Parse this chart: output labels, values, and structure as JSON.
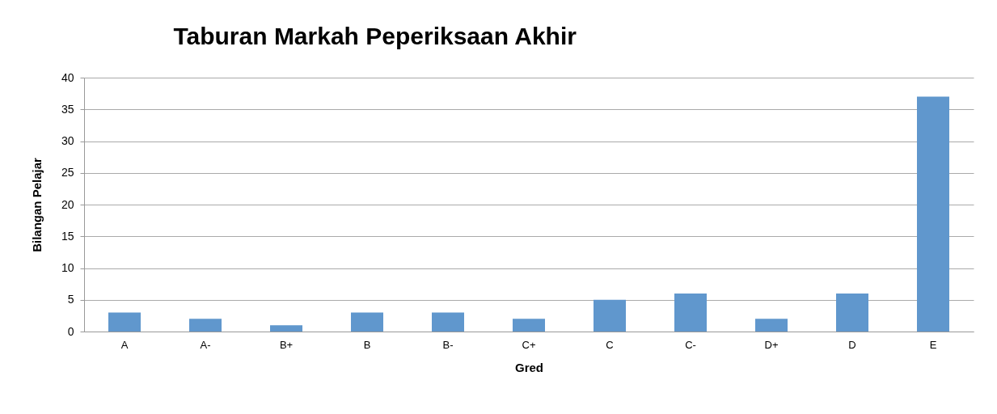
{
  "chart_data": {
    "type": "bar",
    "title": "Taburan Markah Peperiksaan Akhir",
    "xlabel": "Gred",
    "ylabel": "Bilangan Pelajar",
    "categories": [
      "A",
      "A-",
      "B+",
      "B",
      "B-",
      "C+",
      "C",
      "C-",
      "D+",
      "D",
      "E"
    ],
    "values": [
      3,
      2,
      1,
      3,
      3,
      2,
      5,
      6,
      2,
      6,
      37
    ],
    "color": "#6097cd",
    "ylim": [
      0,
      40
    ],
    "yticks": [
      0,
      5,
      10,
      15,
      20,
      25,
      30,
      35,
      40
    ],
    "grid": "y"
  }
}
